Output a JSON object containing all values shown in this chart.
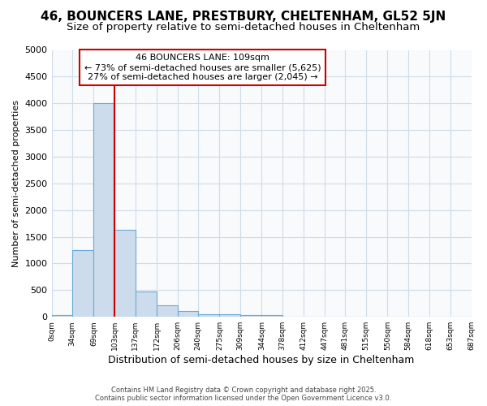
{
  "title": "46, BOUNCERS LANE, PRESTBURY, CHELTENHAM, GL52 5JN",
  "subtitle": "Size of property relative to semi-detached houses in Cheltenham",
  "xlabel": "Distribution of semi-detached houses by size in Cheltenham",
  "ylabel": "Number of semi-detached properties",
  "bar_values": [
    30,
    1250,
    4000,
    1630,
    470,
    220,
    110,
    55,
    50,
    30,
    30,
    5,
    3,
    2,
    1,
    0,
    0,
    0,
    0,
    0
  ],
  "bin_edges": [
    0,
    34,
    69,
    103,
    137,
    172,
    206,
    240,
    275,
    309,
    344,
    378,
    412,
    447,
    481,
    515,
    550,
    584,
    618,
    653,
    687
  ],
  "bar_color": "#ccdcec",
  "bar_edgecolor": "#6aaad4",
  "property_line_x": 103,
  "property_line_color": "#cc0000",
  "annotation_title": "46 BOUNCERS LANE: 109sqm",
  "annotation_line1": "← 73% of semi-detached houses are smaller (5,625)",
  "annotation_line2": "27% of semi-detached houses are larger (2,045) →",
  "annotation_box_color": "#cc0000",
  "ylim": [
    0,
    5000
  ],
  "yticks": [
    0,
    500,
    1000,
    1500,
    2000,
    2500,
    3000,
    3500,
    4000,
    4500,
    5000
  ],
  "footer_line1": "Contains HM Land Registry data © Crown copyright and database right 2025.",
  "footer_line2": "Contains public sector information licensed under the Open Government Licence v3.0.",
  "background_color": "#ffffff",
  "plot_background": "#f8fafc",
  "grid_color": "#d0dce8",
  "title_fontsize": 11,
  "subtitle_fontsize": 9.5
}
